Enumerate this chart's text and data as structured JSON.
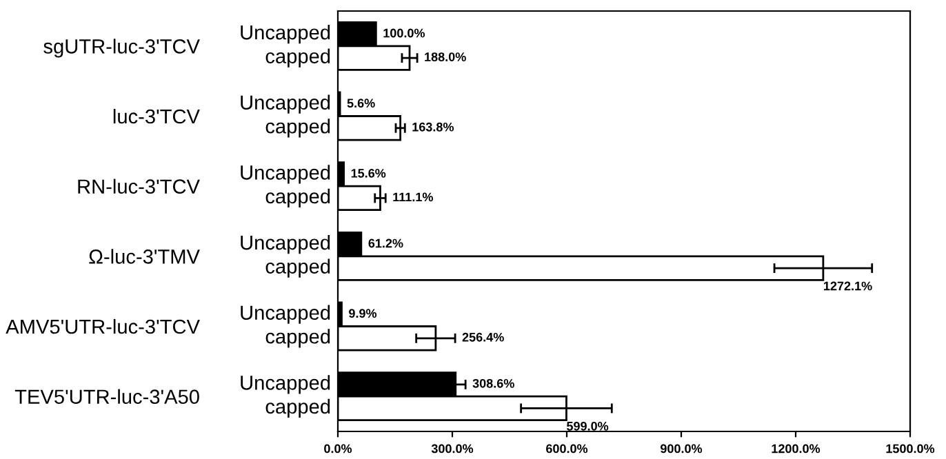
{
  "chart_data": {
    "type": "bar",
    "orientation": "horizontal",
    "categories": [
      "sgUTR-luc-3'TCV",
      "luc-3'TCV",
      "RN-luc-3'TCV",
      "Ω-luc-3'TMV",
      "AMV5'UTR-luc-3'TCV",
      "TEV5'UTR-luc-3'A50"
    ],
    "series": [
      {
        "name": "Uncapped",
        "color": "#000000",
        "values": [
          100.0,
          5.6,
          15.6,
          61.2,
          9.9,
          308.6
        ],
        "errors": [
          null,
          null,
          null,
          null,
          null,
          26
        ],
        "value_labels": [
          "100.0%",
          "5.6%",
          "15.6%",
          "61.2%",
          "9.9%",
          "308.6%"
        ]
      },
      {
        "name": "capped",
        "color": "#ffffff",
        "values": [
          188.0,
          163.8,
          111.1,
          1272.1,
          256.4,
          599.0
        ],
        "errors": [
          20,
          12,
          14,
          128,
          51,
          119
        ],
        "value_labels": [
          "188.0%",
          "163.8%",
          "111.1%",
          "1272.1%",
          "256.4%",
          "599.0%"
        ]
      }
    ],
    "xlim": [
      0,
      1500
    ],
    "xticks": [
      {
        "value": 0,
        "label": "0.0%"
      },
      {
        "value": 300,
        "label": "300.0%"
      },
      {
        "value": 600,
        "label": "600.0%"
      },
      {
        "value": 900,
        "label": "900.0%"
      },
      {
        "value": 1200,
        "label": "1200.0%"
      },
      {
        "value": 1500,
        "label": "1500.0%"
      }
    ],
    "grid": false,
    "legend": false
  }
}
